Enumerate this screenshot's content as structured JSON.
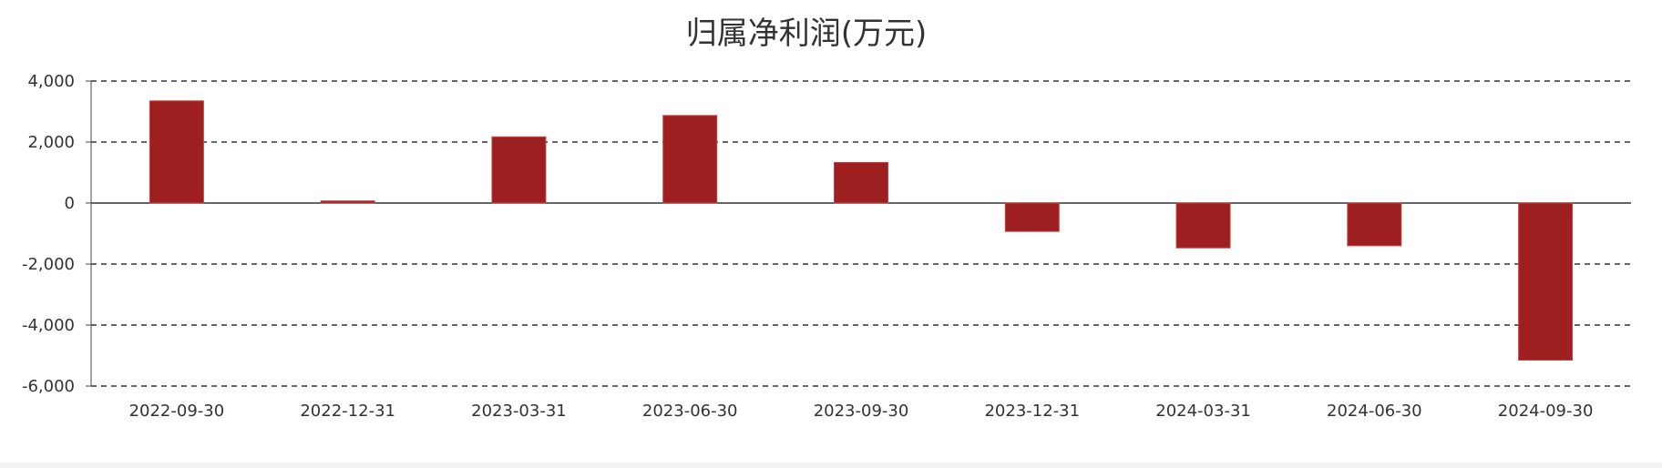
{
  "chart_data": {
    "type": "bar",
    "title": "归属净利润(万元)",
    "categories": [
      "2022-09-30",
      "2022-12-31",
      "2023-03-31",
      "2023-06-30",
      "2023-09-30",
      "2023-12-31",
      "2024-03-31",
      "2024-06-30",
      "2024-09-30"
    ],
    "values": [
      3350,
      70,
      2170,
      2870,
      1330,
      -930,
      -1470,
      -1400,
      -5150
    ],
    "ylim": [
      -6000,
      4000
    ],
    "yticks": [
      4000,
      2000,
      0,
      -2000,
      -4000,
      -6000
    ],
    "ytick_labels": [
      "4,000",
      "2,000",
      "0",
      "-2,000",
      "-4,000",
      "-6,000"
    ],
    "grid": true,
    "colors": {
      "bar": "#9e1f1f",
      "bar_edge": "#c04545",
      "text": "#333333"
    }
  }
}
